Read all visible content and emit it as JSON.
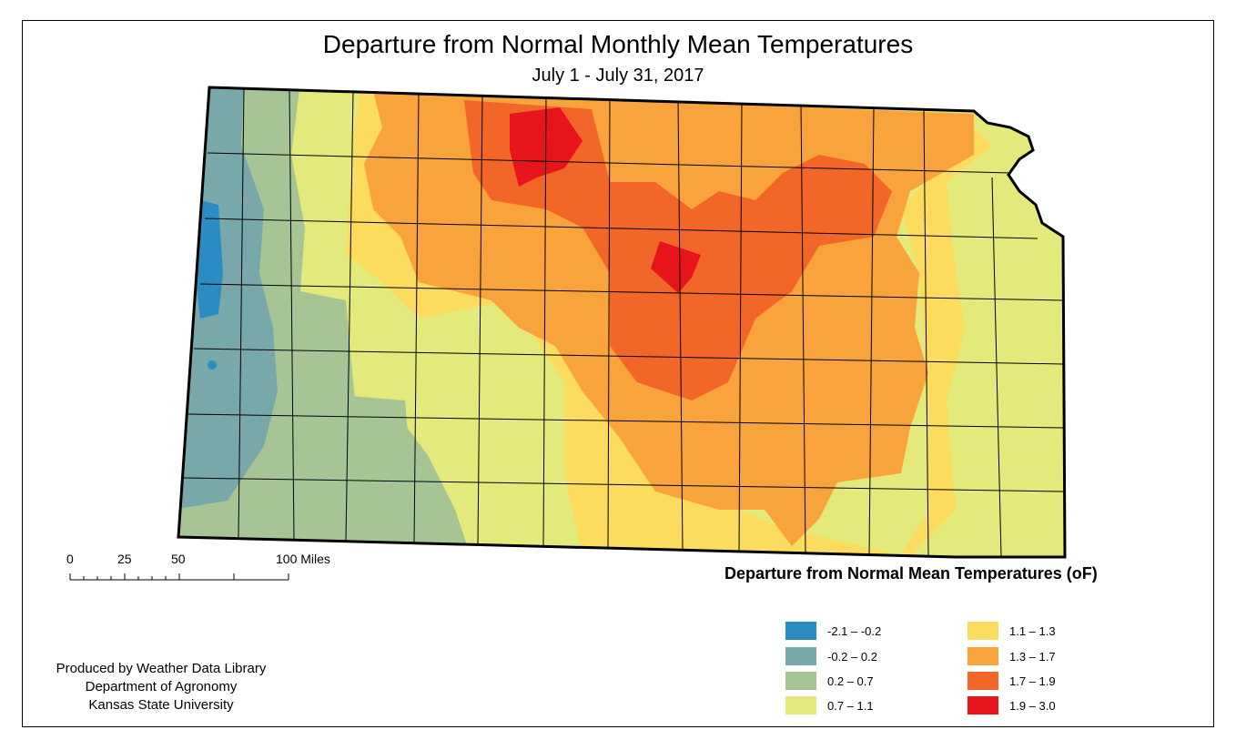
{
  "title": "Departure from Normal Monthly Mean Temperatures",
  "subtitle": "July 1 - July 31, 2017",
  "scale_bar": {
    "labels": [
      "0",
      "25",
      "50",
      "100 Miles"
    ]
  },
  "legend": {
    "title": "Departure from Normal Mean Temperatures (oF)",
    "items": [
      {
        "label": "-2.1 – -0.2",
        "color": "#2b8cc4"
      },
      {
        "label": "-0.2 – 0.2",
        "color": "#78a8aa"
      },
      {
        "label": "0.2 – 0.7",
        "color": "#a7c594"
      },
      {
        "label": "0.7 – 1.1",
        "color": "#e3e97a"
      },
      {
        "label": "1.1 – 1.3",
        "color": "#fbdc5e"
      },
      {
        "label": "1.3 – 1.7",
        "color": "#f9a33d"
      },
      {
        "label": "1.7 – 1.9",
        "color": "#f26627"
      },
      {
        "label": "1.9 – 3.0",
        "color": "#e8141b"
      }
    ]
  },
  "credits": {
    "line1": "Produced by Weather Data Library",
    "line2": "Department of Agronomy",
    "line3": "Kansas State University"
  }
}
